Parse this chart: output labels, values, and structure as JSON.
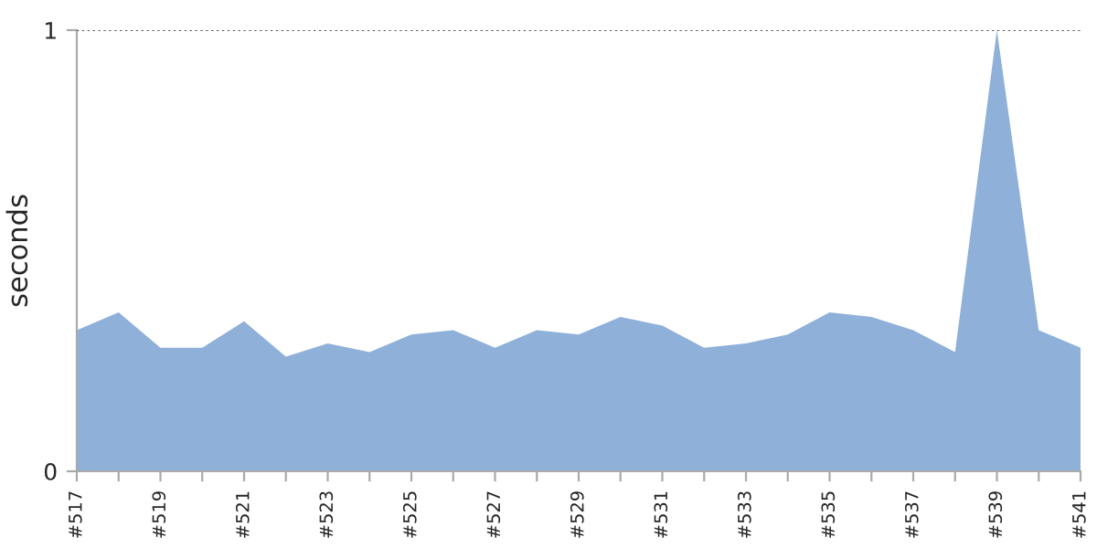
{
  "chart_data": {
    "type": "area",
    "ylabel": "seconds",
    "categories": [
      "#517",
      null,
      "#519",
      null,
      "#521",
      null,
      "#523",
      null,
      "#525",
      null,
      "#527",
      null,
      "#529",
      null,
      "#531",
      null,
      "#533",
      null,
      "#535",
      null,
      "#537",
      null,
      "#539",
      null,
      "#541"
    ],
    "series": [
      {
        "color": "#8fb0d9",
        "values": [
          0.32,
          0.36,
          0.28,
          0.28,
          0.34,
          0.26,
          0.29,
          0.27,
          0.31,
          0.32,
          0.28,
          0.32,
          0.31,
          0.35,
          0.33,
          0.28,
          0.29,
          0.31,
          0.36,
          0.35,
          0.32,
          0.27,
          1.0,
          0.32,
          0.28
        ]
      }
    ],
    "ylim": [
      0,
      1
    ],
    "yticks": [
      0,
      1
    ],
    "ref_lines": [
      {
        "axis": "y",
        "value": 1,
        "line_style": "dotted",
        "color": "#555555"
      }
    ]
  }
}
